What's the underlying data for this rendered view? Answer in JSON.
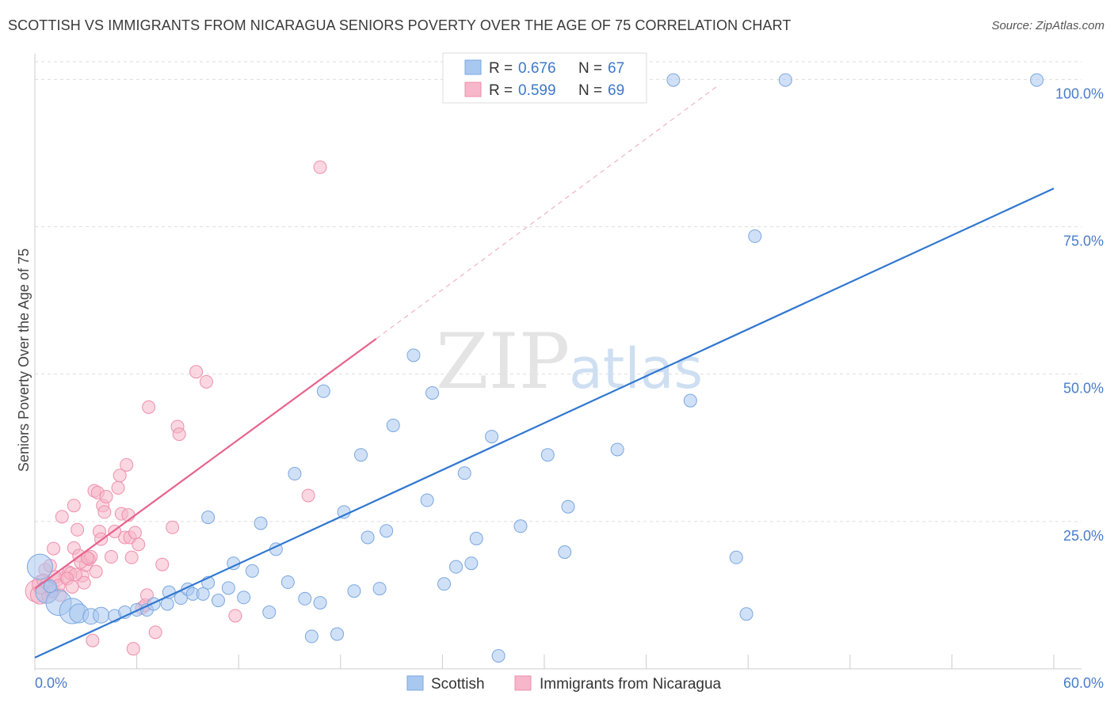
{
  "header": {
    "title": "SCOTTISH VS IMMIGRANTS FROM NICARAGUA SENIORS POVERTY OVER THE AGE OF 75 CORRELATION CHART",
    "source": "Source: ZipAtlas.com"
  },
  "watermark": {
    "zip": "ZIP",
    "atlas": "atlas"
  },
  "colors": {
    "blue_fill": "#a9c8f0",
    "blue_stroke": "#7aa7e0",
    "blue_line": "#2f77d0",
    "pink_fill": "#f5b7c9",
    "pink_stroke": "#ee8fab",
    "pink_line": "#e8628c",
    "axis_text": "#4a7cc9",
    "grid": "#dddddd"
  },
  "legend_top": {
    "rows": [
      {
        "r_label": "R =",
        "r_value": "0.676",
        "n_label": "N =",
        "n_value": "67"
      },
      {
        "r_label": "R =",
        "r_value": "0.599",
        "n_label": "N =",
        "n_value": "69"
      }
    ]
  },
  "legend_bottom": {
    "items": [
      {
        "label": "Scottish"
      },
      {
        "label": "Immigrants from Nicaragua"
      }
    ]
  },
  "chart_data": {
    "type": "scatter",
    "title": "SCOTTISH VS IMMIGRANTS FROM NICARAGUA SENIORS POVERTY OVER THE AGE OF 75 CORRELATION CHART",
    "xlabel": "",
    "ylabel": "Seniors Poverty Over the Age of 75",
    "xlim": [
      0,
      60
    ],
    "ylim": [
      0,
      103
    ],
    "x_tick_labels": [
      "0.0%",
      "60.0%"
    ],
    "y_ticks": [
      25,
      50,
      75,
      100
    ],
    "y_tick_labels": [
      "25.0%",
      "50.0%",
      "75.0%",
      "100.0%"
    ],
    "grid": true,
    "legend_position": "top-center",
    "series": [
      {
        "name": "Scottish",
        "r": 0.676,
        "n": 67,
        "trend": {
          "x": [
            0,
            60
          ],
          "y": [
            1.9,
            81.5
          ],
          "style": "solid"
        },
        "points": [
          [
            0.3,
            17.3,
            16
          ],
          [
            0.7,
            13.0,
            14
          ],
          [
            1.4,
            11.2,
            16
          ],
          [
            2.2,
            9.8,
            16
          ],
          [
            2.6,
            9.4,
            12
          ],
          [
            3.3,
            8.9,
            10
          ],
          [
            3.9,
            9.1,
            10
          ],
          [
            4.7,
            9.0,
            8
          ],
          [
            5.3,
            9.6,
            8
          ],
          [
            6.0,
            10.0,
            8
          ],
          [
            6.6,
            10.0,
            8
          ],
          [
            7.0,
            11.0,
            8
          ],
          [
            7.8,
            11.0,
            8
          ],
          [
            7.9,
            13.0,
            8
          ],
          [
            8.6,
            12.0,
            8
          ],
          [
            9.0,
            13.5,
            8
          ],
          [
            9.3,
            12.7,
            8
          ],
          [
            9.9,
            12.7,
            8
          ],
          [
            10.2,
            14.6,
            8
          ],
          [
            10.2,
            25.7,
            8
          ],
          [
            10.8,
            11.6,
            8
          ],
          [
            11.4,
            13.7,
            8
          ],
          [
            11.7,
            17.9,
            8
          ],
          [
            12.3,
            12.1,
            8
          ],
          [
            12.8,
            16.6,
            8
          ],
          [
            13.3,
            24.7,
            8
          ],
          [
            13.8,
            9.6,
            8
          ],
          [
            14.2,
            20.3,
            8
          ],
          [
            14.9,
            14.7,
            8
          ],
          [
            15.3,
            33.1,
            8
          ],
          [
            15.9,
            11.9,
            8
          ],
          [
            16.3,
            5.5,
            8
          ],
          [
            16.8,
            11.2,
            8
          ],
          [
            17.0,
            47.1,
            8
          ],
          [
            17.8,
            5.9,
            8
          ],
          [
            18.2,
            26.6,
            8
          ],
          [
            18.8,
            13.2,
            8
          ],
          [
            19.2,
            36.3,
            8
          ],
          [
            19.6,
            22.3,
            8
          ],
          [
            20.3,
            13.6,
            8
          ],
          [
            20.7,
            23.4,
            8
          ],
          [
            21.1,
            41.3,
            8
          ],
          [
            22.3,
            53.2,
            8
          ],
          [
            23.1,
            28.6,
            8
          ],
          [
            23.4,
            46.8,
            8
          ],
          [
            24.1,
            14.4,
            8
          ],
          [
            24.8,
            17.3,
            8
          ],
          [
            25.3,
            33.2,
            8
          ],
          [
            25.7,
            17.9,
            8
          ],
          [
            26.0,
            22.1,
            8
          ],
          [
            26.9,
            39.4,
            8
          ],
          [
            27.3,
            2.2,
            8
          ],
          [
            28.6,
            24.2,
            8
          ],
          [
            30.0,
            99.9,
            8
          ],
          [
            30.2,
            36.3,
            8
          ],
          [
            31.4,
            27.5,
            8
          ],
          [
            31.2,
            19.8,
            8
          ],
          [
            34.0,
            99.9,
            8
          ],
          [
            34.3,
            37.2,
            8
          ],
          [
            37.6,
            99.9,
            8
          ],
          [
            38.6,
            45.5,
            8
          ],
          [
            41.3,
            18.9,
            8
          ],
          [
            41.9,
            9.3,
            8
          ],
          [
            42.4,
            73.4,
            8
          ],
          [
            44.2,
            99.9,
            8
          ],
          [
            59.0,
            99.9,
            8
          ],
          [
            0.9,
            14.0,
            8
          ]
        ]
      },
      {
        "name": "Immigrants from Nicaragua",
        "r": 0.599,
        "n": 69,
        "trend": {
          "x": [
            0,
            20.1
          ],
          "y": [
            13.6,
            56.0
          ],
          "style": "solid",
          "extension": {
            "x": [
              20.1,
              40.2
            ],
            "y": [
              56.0,
              98.9
            ],
            "style": "dashed"
          }
        },
        "points": [
          [
            0.1,
            13.2,
            14
          ],
          [
            0.3,
            12.6,
            12
          ],
          [
            0.4,
            14.3,
            12
          ],
          [
            0.6,
            16.8,
            8
          ],
          [
            0.7,
            14.5,
            8
          ],
          [
            0.8,
            12.2,
            8
          ],
          [
            1.0,
            13.1,
            8
          ],
          [
            1.1,
            20.4,
            8
          ],
          [
            1.3,
            15.1,
            8
          ],
          [
            1.6,
            25.8,
            8
          ],
          [
            1.8,
            15.6,
            8
          ],
          [
            2.0,
            16.4,
            8
          ],
          [
            2.3,
            27.7,
            8
          ],
          [
            2.3,
            20.5,
            8
          ],
          [
            2.5,
            23.6,
            8
          ],
          [
            2.6,
            19.2,
            8
          ],
          [
            2.8,
            15.8,
            8
          ],
          [
            2.9,
            14.6,
            8
          ],
          [
            3.0,
            17.6,
            8
          ],
          [
            3.2,
            18.6,
            8
          ],
          [
            3.3,
            19.0,
            8
          ],
          [
            3.4,
            4.8,
            8
          ],
          [
            3.5,
            30.2,
            8
          ],
          [
            3.7,
            29.9,
            8
          ],
          [
            3.8,
            23.3,
            8
          ],
          [
            3.9,
            22.0,
            8
          ],
          [
            4.0,
            27.7,
            8
          ],
          [
            4.1,
            26.6,
            8
          ],
          [
            4.2,
            29.2,
            8
          ],
          [
            4.5,
            19.0,
            8
          ],
          [
            4.7,
            23.3,
            8
          ],
          [
            4.9,
            30.7,
            8
          ],
          [
            5.0,
            32.8,
            8
          ],
          [
            5.1,
            26.3,
            8
          ],
          [
            5.3,
            22.3,
            8
          ],
          [
            5.4,
            34.6,
            8
          ],
          [
            5.5,
            26.1,
            8
          ],
          [
            5.6,
            22.3,
            8
          ],
          [
            5.7,
            18.9,
            8
          ],
          [
            5.8,
            3.4,
            8
          ],
          [
            5.9,
            23.1,
            8
          ],
          [
            6.1,
            21.1,
            8
          ],
          [
            6.3,
            10.3,
            8
          ],
          [
            6.5,
            10.8,
            8
          ],
          [
            6.6,
            12.5,
            8
          ],
          [
            6.7,
            44.4,
            8
          ],
          [
            7.1,
            6.2,
            8
          ],
          [
            7.5,
            17.7,
            8
          ],
          [
            8.1,
            24.0,
            8
          ],
          [
            8.4,
            41.1,
            8
          ],
          [
            8.5,
            39.8,
            8
          ],
          [
            9.5,
            50.4,
            8
          ],
          [
            10.1,
            48.7,
            8
          ],
          [
            11.8,
            9.0,
            8
          ],
          [
            16.1,
            29.4,
            8
          ],
          [
            16.8,
            85.1,
            8
          ],
          [
            1.1,
            13.2,
            8
          ],
          [
            1.2,
            15.6,
            8
          ],
          [
            1.5,
            12.5,
            8
          ],
          [
            2.1,
            16.2,
            8
          ],
          [
            2.4,
            16.0,
            8
          ],
          [
            2.7,
            18.1,
            8
          ],
          [
            3.1,
            18.8,
            8
          ],
          [
            0.5,
            15.0,
            8
          ],
          [
            0.9,
            17.5,
            8
          ],
          [
            1.4,
            14.1,
            8
          ],
          [
            1.9,
            15.3,
            8
          ],
          [
            2.2,
            13.9,
            8
          ],
          [
            3.6,
            16.5,
            8
          ]
        ]
      }
    ]
  }
}
